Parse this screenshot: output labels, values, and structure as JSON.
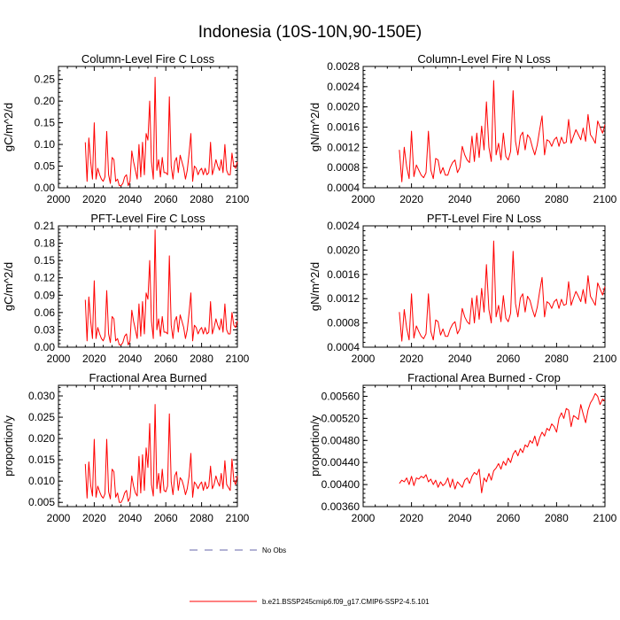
{
  "figure": {
    "title": "Indonesia (10S-10N,90-150E)"
  },
  "chart_data": [
    {
      "type": "line",
      "title": "Column-Level Fire C Loss",
      "xlabel": "",
      "ylabel": "gC/m^2/d",
      "xlim": [
        2000,
        2100
      ],
      "ylim": [
        0,
        0.28
      ],
      "x_ticks": [
        2000,
        2020,
        2040,
        2060,
        2080,
        2100
      ],
      "x_tick_labels": [
        "2000",
        "2020",
        "2040",
        "2060",
        "2080",
        "2100"
      ],
      "y_ticks": [
        0,
        0.05,
        0.1,
        0.15,
        0.2,
        0.25
      ],
      "y_tick_labels": [
        "0.00",
        "0.05",
        "0.10",
        "0.15",
        "0.20",
        "0.25"
      ],
      "series": [
        {
          "name": "b.e21.BSSP245cmip6.f09_g17.CMIP6-SSP2-4.5.101",
          "color": "#ff0000",
          "values": [
            0.105,
            0.015,
            0.115,
            0.06,
            0.02,
            0.15,
            0.02,
            0.045,
            0.03,
            0.02,
            0.015,
            0.025,
            0.13,
            0.03,
            0.01,
            0.07,
            0.065,
            0.015,
            0.02,
            0.005,
            0.005,
            0.01,
            0.025,
            0.03,
            0.005,
            0.015,
            0.085,
            0.06,
            0.04,
            0.02,
            0.1,
            0.025,
            0.105,
            0.03,
            0.125,
            0.11,
            0.2,
            0.06,
            0.02,
            0.255,
            0.04,
            0.065,
            0.025,
            0.07,
            0.035,
            0.035,
            0.03,
            0.21,
            0.05,
            0.02,
            0.06,
            0.07,
            0.035,
            0.075,
            0.06,
            0.045,
            0.02,
            0.04,
            0.08,
            0.125,
            0.015,
            0.05,
            0.045,
            0.03,
            0.04,
            0.045,
            0.03,
            0.045,
            0.03,
            0.035,
            0.105,
            0.03,
            0.045,
            0.065,
            0.05,
            0.04,
            0.065,
            0.035,
            0.1,
            0.04,
            0.03,
            0.03,
            0.08,
            0.05,
            0.045,
            0.06
          ]
        }
      ]
    },
    {
      "type": "line",
      "title": "Column-Level Fire N Loss",
      "xlabel": "",
      "ylabel": "gN/m^2/d",
      "xlim": [
        2000,
        2100
      ],
      "ylim": [
        0.0004,
        0.0028
      ],
      "x_ticks": [
        2000,
        2020,
        2040,
        2060,
        2080,
        2100
      ],
      "x_tick_labels": [
        "2000",
        "2020",
        "2040",
        "2060",
        "2080",
        "2100"
      ],
      "y_ticks": [
        0.0004,
        0.0008,
        0.0012,
        0.0016,
        0.002,
        0.0024,
        0.0028
      ],
      "y_tick_labels": [
        "0.0004",
        "0.0008",
        "0.0012",
        "0.0016",
        "0.0020",
        "0.0024",
        "0.0028"
      ],
      "series": [
        {
          "name": "b.e21.BSSP245cmip6.f09_g17.CMIP6-SSP2-4.5.101",
          "color": "#ff0000",
          "values": [
            0.00115,
            0.00052,
            0.0012,
            0.00082,
            0.00058,
            0.00152,
            0.00062,
            0.00085,
            0.00075,
            0.00065,
            0.0006,
            0.0007,
            0.00152,
            0.00075,
            0.00058,
            0.00098,
            0.00095,
            0.00068,
            0.0008,
            0.00065,
            0.00065,
            0.0008,
            0.0009,
            0.00095,
            0.0007,
            0.0008,
            0.00122,
            0.00105,
            0.00095,
            0.0009,
            0.00142,
            0.00092,
            0.00148,
            0.001,
            0.00162,
            0.00115,
            0.0021,
            0.0012,
            0.00092,
            0.00252,
            0.00105,
            0.00128,
            0.00095,
            0.00148,
            0.00102,
            0.00095,
            0.00112,
            0.00232,
            0.00132,
            0.00105,
            0.00142,
            0.0015,
            0.00115,
            0.00145,
            0.00138,
            0.0012,
            0.00105,
            0.00125,
            0.00155,
            0.00182,
            0.00105,
            0.00135,
            0.00132,
            0.00122,
            0.00135,
            0.0014,
            0.00122,
            0.0014,
            0.00128,
            0.0013,
            0.00175,
            0.00128,
            0.00142,
            0.00155,
            0.00145,
            0.00135,
            0.00158,
            0.00132,
            0.00185,
            0.00145,
            0.00138,
            0.00128,
            0.00172,
            0.0016,
            0.00148,
            0.00165
          ]
        }
      ]
    },
    {
      "type": "line",
      "title": "PFT-Level Fire C Loss",
      "xlabel": "",
      "ylabel": "gC/m^2/d",
      "xlim": [
        2000,
        2100
      ],
      "ylim": [
        0,
        0.21
      ],
      "x_ticks": [
        2000,
        2020,
        2040,
        2060,
        2080,
        2100
      ],
      "x_tick_labels": [
        "2000",
        "2020",
        "2040",
        "2060",
        "2080",
        "2100"
      ],
      "y_ticks": [
        0,
        0.03,
        0.06,
        0.09,
        0.12,
        0.15,
        0.18,
        0.21
      ],
      "y_tick_labels": [
        "0.00",
        "0.03",
        "0.06",
        "0.09",
        "0.12",
        "0.15",
        "0.18",
        "0.21"
      ],
      "series": [
        {
          "name": "b.e21.BSSP245cmip6.f09_g17.CMIP6-SSP2-4.5.101",
          "color": "#ff0000",
          "values": [
            0.082,
            0.011,
            0.087,
            0.045,
            0.015,
            0.115,
            0.015,
            0.034,
            0.023,
            0.015,
            0.011,
            0.019,
            0.098,
            0.023,
            0.008,
            0.053,
            0.049,
            0.011,
            0.015,
            0.004,
            0.004,
            0.008,
            0.019,
            0.023,
            0.004,
            0.011,
            0.064,
            0.045,
            0.03,
            0.015,
            0.075,
            0.019,
            0.079,
            0.023,
            0.094,
            0.083,
            0.15,
            0.045,
            0.015,
            0.203,
            0.03,
            0.049,
            0.019,
            0.053,
            0.026,
            0.026,
            0.023,
            0.158,
            0.038,
            0.015,
            0.045,
            0.053,
            0.026,
            0.056,
            0.045,
            0.034,
            0.015,
            0.03,
            0.06,
            0.094,
            0.011,
            0.038,
            0.034,
            0.023,
            0.03,
            0.034,
            0.023,
            0.034,
            0.023,
            0.026,
            0.079,
            0.023,
            0.034,
            0.049,
            0.038,
            0.03,
            0.049,
            0.026,
            0.075,
            0.03,
            0.023,
            0.023,
            0.06,
            0.038,
            0.034,
            0.045
          ]
        }
      ]
    },
    {
      "type": "line",
      "title": "PFT-Level Fire N Loss",
      "xlabel": "",
      "ylabel": "gN/m^2/d",
      "xlim": [
        2000,
        2100
      ],
      "ylim": [
        0.0004,
        0.0024
      ],
      "x_ticks": [
        2000,
        2020,
        2040,
        2060,
        2080,
        2100
      ],
      "x_tick_labels": [
        "2000",
        "2020",
        "2040",
        "2060",
        "2080",
        "2100"
      ],
      "y_ticks": [
        0.0004,
        0.0008,
        0.0012,
        0.0016,
        0.002,
        0.0024
      ],
      "y_tick_labels": [
        "0.0004",
        "0.0008",
        "0.0012",
        "0.0016",
        "0.0020",
        "0.0024"
      ],
      "series": [
        {
          "name": "b.e21.BSSP245cmip6.f09_g17.CMIP6-SSP2-4.5.101",
          "color": "#ff0000",
          "values": [
            0.00098,
            0.0005,
            0.00102,
            0.00072,
            0.00052,
            0.00128,
            0.00055,
            0.00075,
            0.00066,
            0.00058,
            0.00054,
            0.00062,
            0.00128,
            0.00066,
            0.00052,
            0.00085,
            0.00082,
            0.0006,
            0.0007,
            0.00058,
            0.00058,
            0.0007,
            0.00078,
            0.00082,
            0.00062,
            0.0007,
            0.00104,
            0.0009,
            0.00082,
            0.00078,
            0.00121,
            0.0008,
            0.00125,
            0.00086,
            0.00137,
            0.00098,
            0.00176,
            0.00102,
            0.0008,
            0.00215,
            0.0009,
            0.00109,
            0.00082,
            0.00125,
            0.00088,
            0.00082,
            0.00096,
            0.00198,
            0.00112,
            0.0009,
            0.00121,
            0.00128,
            0.00098,
            0.00124,
            0.00117,
            0.00102,
            0.0009,
            0.00106,
            0.00132,
            0.00155,
            0.0009,
            0.00115,
            0.00112,
            0.00104,
            0.00115,
            0.00119,
            0.00104,
            0.00119,
            0.00109,
            0.00111,
            0.00148,
            0.00109,
            0.00121,
            0.00132,
            0.00124,
            0.00115,
            0.00135,
            0.00112,
            0.00158,
            0.00124,
            0.00117,
            0.00109,
            0.00146,
            0.00136,
            0.00126,
            0.0014
          ]
        }
      ]
    },
    {
      "type": "line",
      "title": "Fractional Area Burned",
      "xlabel": "",
      "ylabel": "proportion/y",
      "xlim": [
        2000,
        2100
      ],
      "ylim": [
        0.004,
        0.0325
      ],
      "x_ticks": [
        2000,
        2020,
        2040,
        2060,
        2080,
        2100
      ],
      "x_tick_labels": [
        "2000",
        "2020",
        "2040",
        "2060",
        "2080",
        "2100"
      ],
      "y_ticks": [
        0.005,
        0.01,
        0.015,
        0.02,
        0.025,
        0.03
      ],
      "y_tick_labels": [
        "0.005",
        "0.010",
        "0.015",
        "0.020",
        "0.025",
        "0.030"
      ],
      "series": [
        {
          "name": "b.e21.BSSP245cmip6.f09_g17.CMIP6-SSP2-4.5.101",
          "color": "#ff0000",
          "values": [
            0.014,
            0.006,
            0.0145,
            0.009,
            0.0065,
            0.0198,
            0.0062,
            0.0088,
            0.0075,
            0.0065,
            0.006,
            0.007,
            0.0198,
            0.0075,
            0.0058,
            0.0128,
            0.0122,
            0.0062,
            0.0072,
            0.005,
            0.005,
            0.0058,
            0.0072,
            0.0078,
            0.0052,
            0.0062,
            0.0112,
            0.0088,
            0.0072,
            0.0065,
            0.0158,
            0.0072,
            0.0162,
            0.0078,
            0.0178,
            0.0132,
            0.0235,
            0.0092,
            0.0065,
            0.028,
            0.0082,
            0.0118,
            0.0072,
            0.0128,
            0.0078,
            0.0075,
            0.0088,
            0.0258,
            0.0098,
            0.0068,
            0.0112,
            0.0122,
            0.0078,
            0.0108,
            0.0102,
            0.0088,
            0.0068,
            0.0082,
            0.0112,
            0.0165,
            0.0062,
            0.0098,
            0.0092,
            0.0082,
            0.0092,
            0.0098,
            0.0078,
            0.0098,
            0.0082,
            0.0088,
            0.0135,
            0.0082,
            0.0092,
            0.0112,
            0.0098,
            0.0088,
            0.0118,
            0.0082,
            0.0148,
            0.0092,
            0.0085,
            0.0078,
            0.0152,
            0.0102,
            0.0092,
            0.0112
          ]
        }
      ]
    },
    {
      "type": "line",
      "title": "Fractional Area Burned - Crop",
      "xlabel": "",
      "ylabel": "proportion/y",
      "xlim": [
        2000,
        2100
      ],
      "ylim": [
        0.0036,
        0.0058
      ],
      "x_ticks": [
        2000,
        2020,
        2040,
        2060,
        2080,
        2100
      ],
      "x_tick_labels": [
        "2000",
        "2020",
        "2040",
        "2060",
        "2080",
        "2100"
      ],
      "y_ticks": [
        0.0036,
        0.004,
        0.0044,
        0.0048,
        0.0052,
        0.0056
      ],
      "y_tick_labels": [
        "0.00360",
        "0.00400",
        "0.00440",
        "0.00480",
        "0.00520",
        "0.00560"
      ],
      "series": [
        {
          "name": "b.e21.BSSP245cmip6.f09_g17.CMIP6-SSP2-4.5.101",
          "color": "#ff0000",
          "values": [
            0.00402,
            0.00408,
            0.00405,
            0.00412,
            0.004,
            0.00415,
            0.00398,
            0.00412,
            0.0041,
            0.00415,
            0.00412,
            0.00418,
            0.00405,
            0.0041,
            0.004,
            0.00408,
            0.00395,
            0.00405,
            0.00398,
            0.00402,
            0.00412,
            0.00395,
            0.0041,
            0.00392,
            0.00405,
            0.004,
            0.00395,
            0.00408,
            0.00412,
            0.00402,
            0.00415,
            0.00422,
            0.00418,
            0.00428,
            0.00385,
            0.00412,
            0.00405,
            0.0042,
            0.00408,
            0.00425,
            0.0043,
            0.00438,
            0.00428,
            0.00442,
            0.00435,
            0.00448,
            0.0044,
            0.00455,
            0.00462,
            0.00452,
            0.00465,
            0.00458,
            0.00472,
            0.00468,
            0.0048,
            0.00475,
            0.00488,
            0.0047,
            0.00485,
            0.00495,
            0.00488,
            0.00502,
            0.00498,
            0.0051,
            0.00505,
            0.00495,
            0.0052,
            0.0053,
            0.0052,
            0.00538,
            0.00535,
            0.00505,
            0.00525,
            0.00522,
            0.00518,
            0.00545,
            0.00528,
            0.00512,
            0.00535,
            0.00548,
            0.00555,
            0.00565,
            0.0056,
            0.00545,
            0.00555,
            0.00552
          ]
        }
      ]
    }
  ],
  "legend": {
    "entries": [
      {
        "label": "No Obs",
        "color": "#6666aa",
        "dash": "dashed"
      },
      {
        "label": "b.e21.BSSP245cmip6.f09_g17.CMIP6-SSP2-4.5.101",
        "color": "#ff0000",
        "dash": "solid"
      }
    ]
  },
  "x_start_year": 2015
}
